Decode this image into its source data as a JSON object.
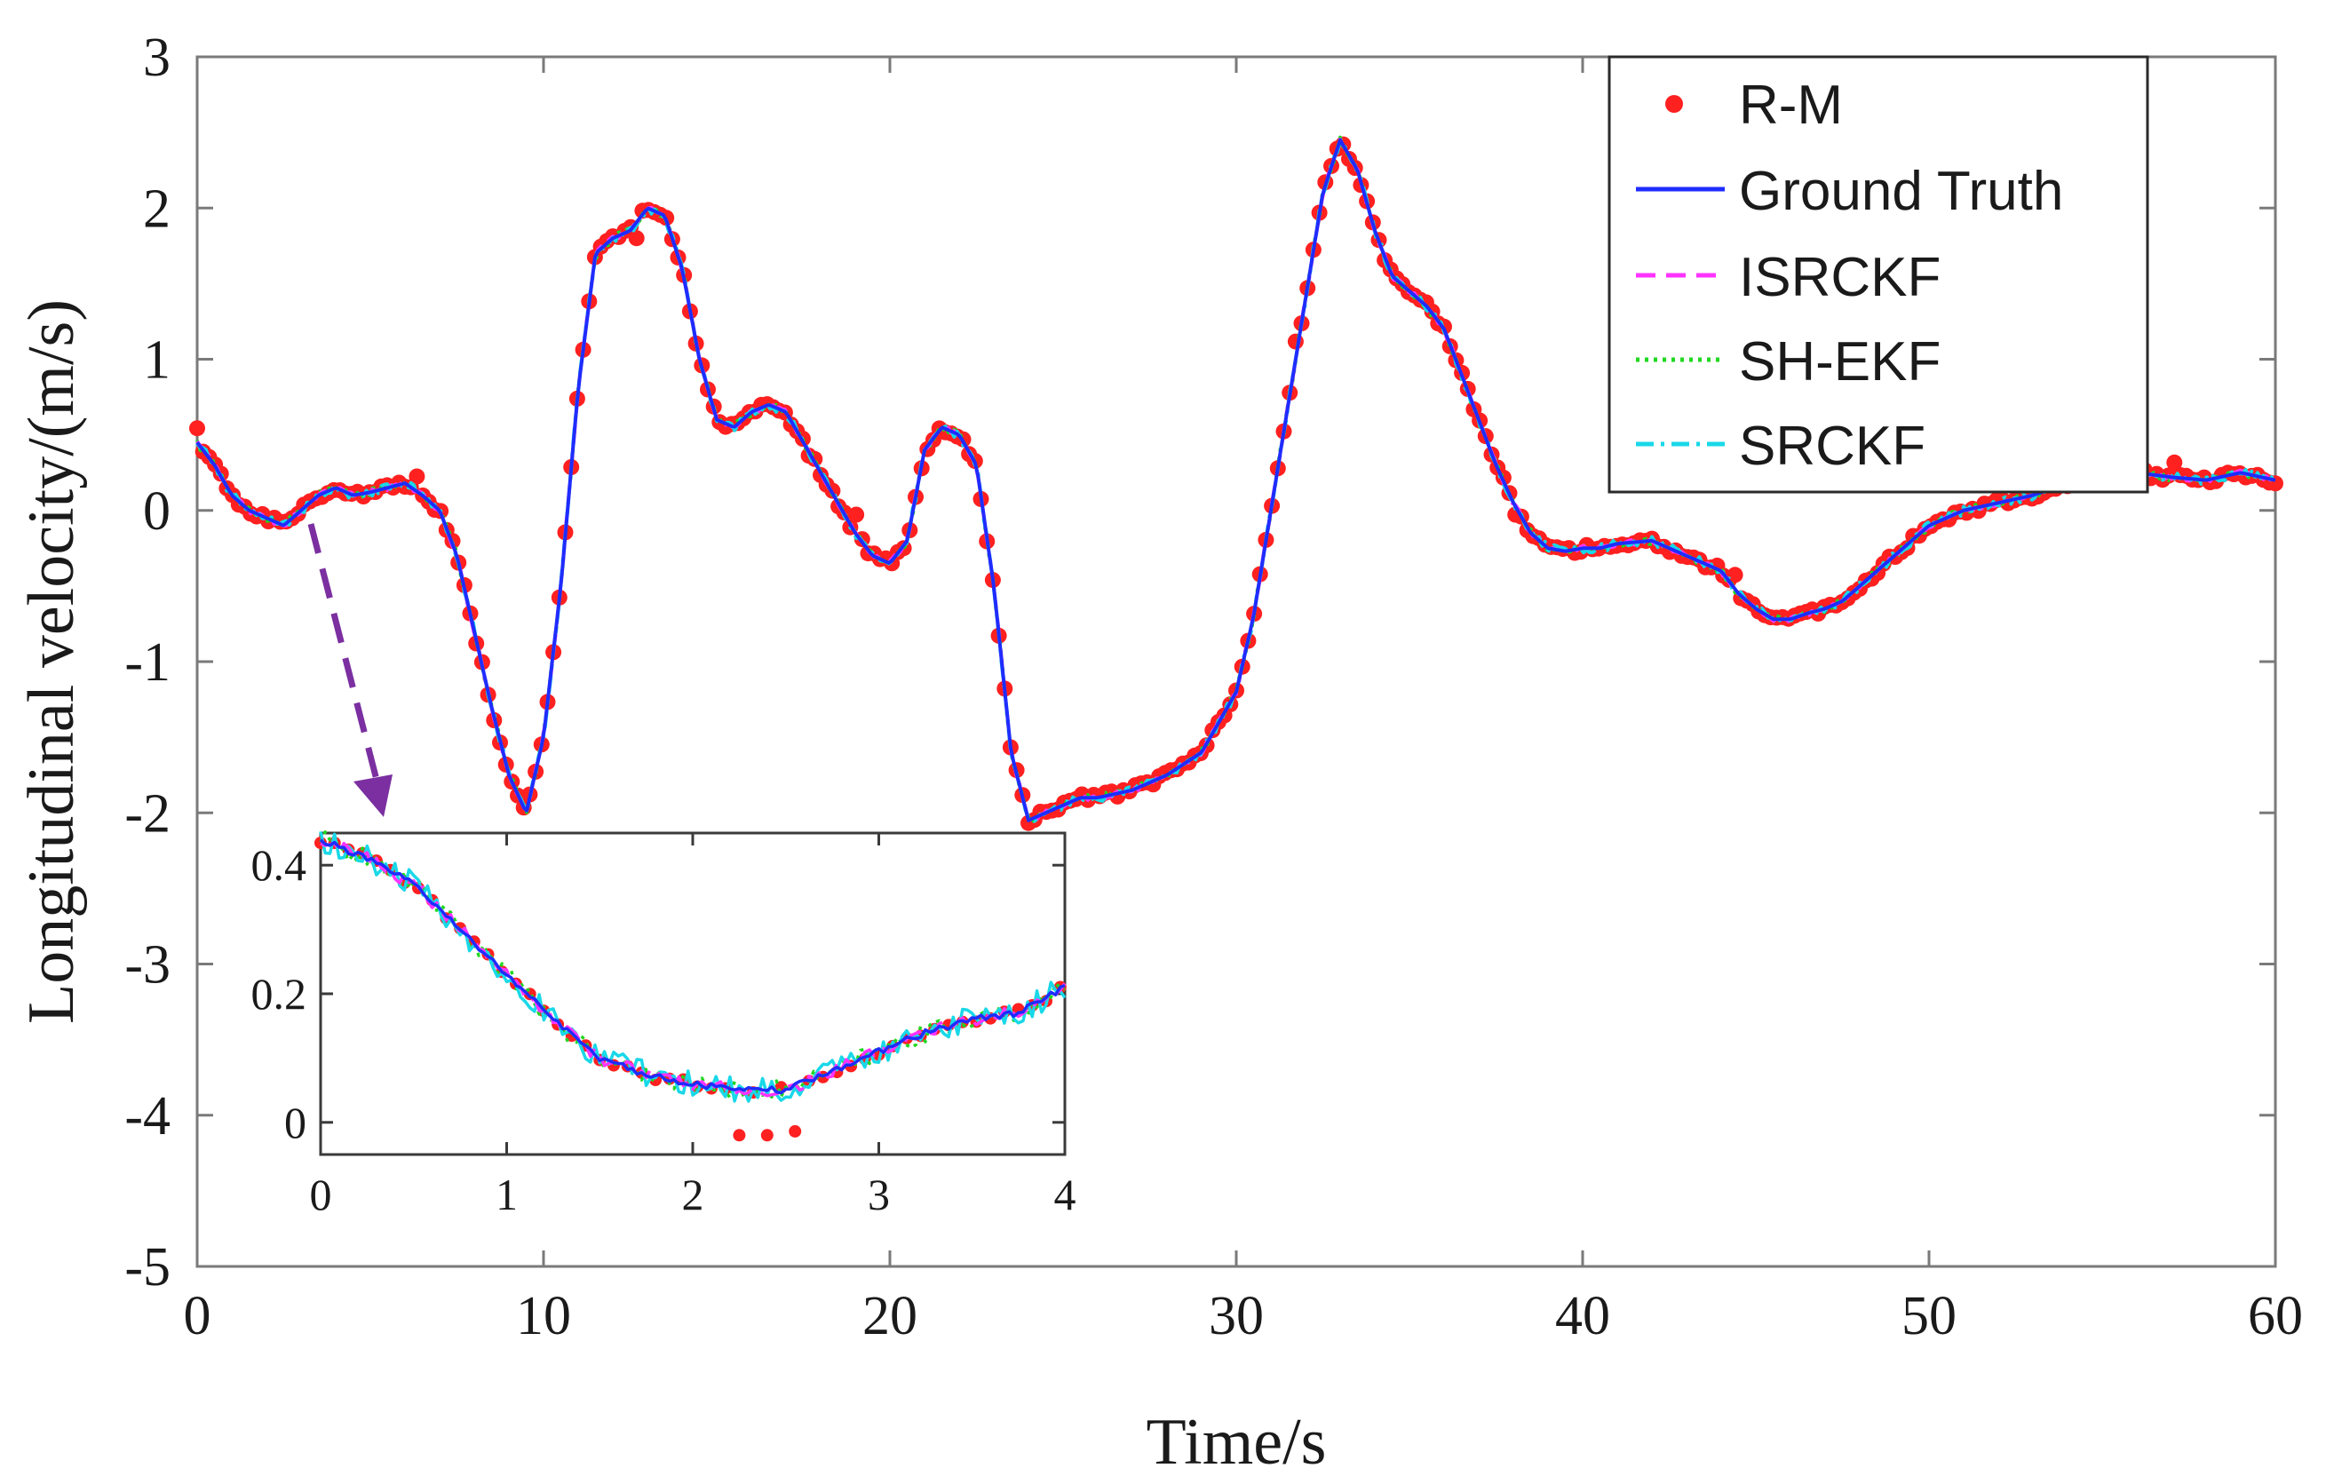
{
  "chart_data": {
    "type": "line",
    "title": "",
    "xlabel": "Time/s",
    "ylabel": "Longitudinal velocity/(m/s)",
    "xlim": [
      0,
      60
    ],
    "ylim": [
      -5,
      3
    ],
    "xticks": [
      "0",
      "10",
      "20",
      "30",
      "40",
      "50",
      "60"
    ],
    "yticks": [
      "3",
      "2",
      "1",
      "0",
      "-1",
      "-2",
      "-3",
      "-4",
      "-5"
    ],
    "legend_position": "top-right",
    "series": [
      {
        "name": "R-M",
        "style": "markers",
        "color": "#ff2020"
      },
      {
        "name": "Ground Truth",
        "style": "solid",
        "color": "#1f2cff"
      },
      {
        "name": "ISRCKF",
        "style": "dashed",
        "color": "#ff33ff"
      },
      {
        "name": "SH-EKF",
        "style": "dotted",
        "color": "#1fd81f"
      },
      {
        "name": "SRCKF",
        "style": "dashdot",
        "color": "#19d8e8"
      }
    ],
    "main_curve": {
      "x": [
        0,
        0.5,
        1,
        1.5,
        2,
        2.5,
        3,
        3.5,
        4,
        4.5,
        5,
        5.5,
        6,
        6.5,
        7,
        7.5,
        8,
        8.5,
        9,
        9.5,
        10,
        10.5,
        11,
        11.5,
        12,
        12.5,
        13,
        13.5,
        14,
        14.5,
        15,
        15.5,
        16,
        16.5,
        17,
        17.5,
        18,
        18.5,
        19,
        19.5,
        20,
        20.5,
        21,
        21.5,
        22,
        22.5,
        23,
        23.5,
        24,
        24.5,
        25,
        25.5,
        26,
        27,
        28,
        29,
        30,
        30.5,
        31,
        31.5,
        32,
        32.5,
        33,
        33.5,
        34,
        34.5,
        35,
        35.5,
        36,
        36.5,
        37,
        37.5,
        38,
        38.5,
        39,
        39.5,
        40,
        40.5,
        41,
        42,
        43,
        44,
        44.5,
        45,
        45.5,
        46,
        46.5,
        47,
        47.5,
        48,
        48.5,
        49,
        49.5,
        50,
        51,
        52,
        53,
        54,
        55,
        56,
        57,
        58,
        59,
        60
      ],
      "y": [
        0.45,
        0.3,
        0.1,
        0.0,
        -0.05,
        -0.1,
        0.0,
        0.1,
        0.15,
        0.1,
        0.12,
        0.15,
        0.18,
        0.1,
        0.0,
        -0.3,
        -0.8,
        -1.3,
        -1.75,
        -2.0,
        -1.5,
        -0.5,
        0.8,
        1.7,
        1.8,
        1.85,
        2.0,
        1.95,
        1.6,
        1.0,
        0.6,
        0.55,
        0.65,
        0.7,
        0.65,
        0.45,
        0.25,
        0.05,
        -0.15,
        -0.3,
        -0.35,
        -0.2,
        0.4,
        0.55,
        0.5,
        0.3,
        -0.5,
        -1.6,
        -2.05,
        -2.0,
        -1.95,
        -1.9,
        -1.9,
        -1.85,
        -1.75,
        -1.6,
        -1.2,
        -0.7,
        0.0,
        0.7,
        1.4,
        2.1,
        2.45,
        2.25,
        1.85,
        1.55,
        1.45,
        1.35,
        1.2,
        0.9,
        0.6,
        0.3,
        0.05,
        -0.15,
        -0.25,
        -0.27,
        -0.25,
        -0.25,
        -0.22,
        -0.2,
        -0.3,
        -0.4,
        -0.55,
        -0.65,
        -0.72,
        -0.72,
        -0.68,
        -0.65,
        -0.6,
        -0.5,
        -0.4,
        -0.3,
        -0.2,
        -0.1,
        0.0,
        0.05,
        0.1,
        0.18,
        0.22,
        0.25,
        0.22,
        0.2,
        0.25,
        0.2
      ]
    },
    "inset": {
      "xlim": [
        0,
        4
      ],
      "ylim": [
        -0.05,
        0.45
      ],
      "xticks": [
        "0",
        "1",
        "2",
        "3",
        "4"
      ],
      "yticks": [
        "0.4",
        "0.2",
        "0"
      ],
      "curve": {
        "x": [
          0,
          0.25,
          0.5,
          0.75,
          1.0,
          1.25,
          1.5,
          1.75,
          2.0,
          2.25,
          2.5,
          2.75,
          3.0,
          3.25,
          3.5,
          3.75,
          4.0
        ],
        "y": [
          0.44,
          0.41,
          0.37,
          0.3,
          0.23,
          0.16,
          0.1,
          0.075,
          0.06,
          0.05,
          0.05,
          0.08,
          0.11,
          0.14,
          0.16,
          0.17,
          0.21
        ]
      }
    }
  }
}
